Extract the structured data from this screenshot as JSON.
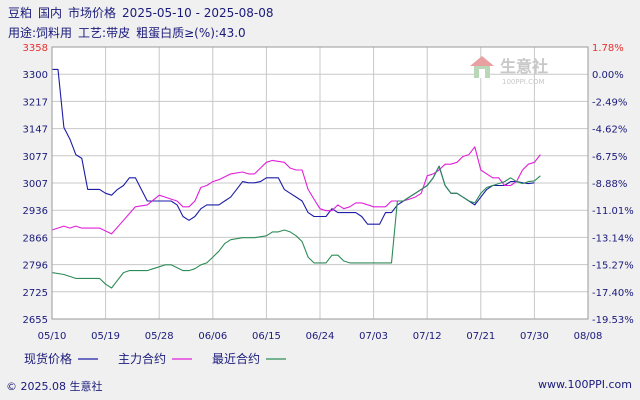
{
  "header": {
    "product": "豆粕",
    "region": "国内",
    "market": "市场价格",
    "date_range": "2025-05-10 - 2025-08-08",
    "usage_label": "用途:饲料用",
    "process_label": "工艺:带皮",
    "protein_label": "粗蛋白质≥(%):43.0"
  },
  "watermark": {
    "brand": "生意社",
    "url": "100PPI.COM"
  },
  "footer": {
    "copyright": "© 2025.08 生意社",
    "site": "www.100PPI.com"
  },
  "colors": {
    "spot": "#1c1ca8",
    "main": "#e020d8",
    "recent": "#2e8b57",
    "grid": "#c8c8c8",
    "plot_bg": "#ffffff",
    "highlight": "#e63030"
  },
  "chart_data": {
    "type": "line",
    "y_ticks_left": [
      "3358",
      "3300",
      "3217",
      "3147",
      "3077",
      "3007",
      "2936",
      "2866",
      "2796",
      "2725",
      "2655"
    ],
    "y_ticks_right": [
      "1.78%",
      "0.00%",
      "-2.49%",
      "-4.62%",
      "-6.75%",
      "-8.88%",
      "-11.01%",
      "-13.14%",
      "-15.27%",
      "-17.40%",
      "-19.53%"
    ],
    "ylim": [
      2655,
      3358
    ],
    "x_ticks": [
      "05/10",
      "05/19",
      "05/28",
      "06/06",
      "06/15",
      "06/24",
      "07/03",
      "07/12",
      "07/21",
      "07/30",
      "08/08"
    ],
    "grid": true,
    "legend_position": "bottom",
    "series": [
      {
        "name": "现货价格",
        "color": "#1c1ca8",
        "points": [
          [
            0,
            3300
          ],
          [
            1,
            3300
          ],
          [
            2,
            3150
          ],
          [
            3,
            3120
          ],
          [
            4,
            3080
          ],
          [
            5,
            3070
          ],
          [
            6,
            2990
          ],
          [
            7,
            2990
          ],
          [
            8,
            2990
          ],
          [
            9,
            2980
          ],
          [
            10,
            2975
          ],
          [
            11,
            2990
          ],
          [
            12,
            3000
          ],
          [
            13,
            3020
          ],
          [
            14,
            3020
          ],
          [
            15,
            2990
          ],
          [
            16,
            2960
          ],
          [
            17,
            2960
          ],
          [
            18,
            2960
          ],
          [
            19,
            2960
          ],
          [
            20,
            2960
          ],
          [
            21,
            2950
          ],
          [
            22,
            2920
          ],
          [
            23,
            2910
          ],
          [
            24,
            2920
          ],
          [
            25,
            2940
          ],
          [
            26,
            2950
          ],
          [
            27,
            2950
          ],
          [
            28,
            2950
          ],
          [
            29,
            2960
          ],
          [
            30,
            2970
          ],
          [
            31,
            2990
          ],
          [
            32,
            3010
          ],
          [
            33,
            3007
          ],
          [
            34,
            3007
          ],
          [
            35,
            3010
          ],
          [
            36,
            3020
          ],
          [
            37,
            3020
          ],
          [
            38,
            3020
          ],
          [
            39,
            2990
          ],
          [
            40,
            2980
          ],
          [
            41,
            2970
          ],
          [
            42,
            2960
          ],
          [
            43,
            2930
          ],
          [
            44,
            2920
          ],
          [
            45,
            2920
          ],
          [
            46,
            2920
          ],
          [
            47,
            2940
          ],
          [
            48,
            2930
          ],
          [
            49,
            2930
          ],
          [
            50,
            2930
          ],
          [
            51,
            2930
          ],
          [
            52,
            2920
          ],
          [
            53,
            2900
          ],
          [
            54,
            2900
          ],
          [
            55,
            2900
          ],
          [
            56,
            2930
          ],
          [
            57,
            2930
          ],
          [
            58,
            2950
          ],
          [
            59,
            2960
          ],
          [
            60,
            2970
          ],
          [
            61,
            2980
          ],
          [
            62,
            2990
          ],
          [
            63,
            3000
          ],
          [
            64,
            3020
          ],
          [
            65,
            3050
          ],
          [
            66,
            3000
          ],
          [
            67,
            2980
          ],
          [
            68,
            2980
          ],
          [
            69,
            2970
          ],
          [
            70,
            2960
          ],
          [
            71,
            2950
          ],
          [
            72,
            2970
          ],
          [
            73,
            2990
          ],
          [
            74,
            3000
          ],
          [
            75,
            3000
          ],
          [
            76,
            3000
          ],
          [
            77,
            3010
          ],
          [
            78,
            3010
          ],
          [
            79,
            3007
          ],
          [
            80,
            3005
          ],
          [
            81,
            3007
          ]
        ]
      },
      {
        "name": "主力合约",
        "color": "#e020d8",
        "points": [
          [
            0,
            2885
          ],
          [
            2,
            2895
          ],
          [
            3,
            2890
          ],
          [
            4,
            2895
          ],
          [
            5,
            2890
          ],
          [
            6,
            2890
          ],
          [
            8,
            2890
          ],
          [
            10,
            2875
          ],
          [
            12,
            2910
          ],
          [
            14,
            2945
          ],
          [
            16,
            2950
          ],
          [
            18,
            2975
          ],
          [
            19,
            2970
          ],
          [
            20,
            2965
          ],
          [
            21,
            2960
          ],
          [
            22,
            2945
          ],
          [
            23,
            2945
          ],
          [
            24,
            2960
          ],
          [
            25,
            2995
          ],
          [
            26,
            3000
          ],
          [
            27,
            3010
          ],
          [
            28,
            3015
          ],
          [
            30,
            3030
          ],
          [
            32,
            3035
          ],
          [
            33,
            3030
          ],
          [
            34,
            3030
          ],
          [
            35,
            3045
          ],
          [
            36,
            3060
          ],
          [
            37,
            3065
          ],
          [
            39,
            3060
          ],
          [
            40,
            3045
          ],
          [
            41,
            3040
          ],
          [
            42,
            3040
          ],
          [
            43,
            2990
          ],
          [
            44,
            2965
          ],
          [
            45,
            2940
          ],
          [
            46,
            2935
          ],
          [
            47,
            2935
          ],
          [
            48,
            2950
          ],
          [
            49,
            2940
          ],
          [
            50,
            2945
          ],
          [
            51,
            2955
          ],
          [
            52,
            2955
          ],
          [
            54,
            2945
          ],
          [
            55,
            2945
          ],
          [
            56,
            2945
          ],
          [
            57,
            2960
          ],
          [
            58,
            2960
          ],
          [
            59,
            2960
          ],
          [
            60,
            2965
          ],
          [
            61,
            2970
          ],
          [
            62,
            2980
          ],
          [
            63,
            3025
          ],
          [
            64,
            3030
          ],
          [
            65,
            3040
          ],
          [
            66,
            3055
          ],
          [
            67,
            3055
          ],
          [
            68,
            3060
          ],
          [
            69,
            3075
          ],
          [
            70,
            3080
          ],
          [
            71,
            3100
          ],
          [
            72,
            3040
          ],
          [
            73,
            3030
          ],
          [
            74,
            3020
          ],
          [
            75,
            3020
          ],
          [
            76,
            3000
          ],
          [
            77,
            3000
          ],
          [
            78,
            3010
          ],
          [
            79,
            3040
          ],
          [
            80,
            3055
          ],
          [
            81,
            3060
          ],
          [
            82,
            3080
          ]
        ]
      },
      {
        "name": "最近合约",
        "color": "#2e8b57",
        "points": [
          [
            0,
            2775
          ],
          [
            2,
            2770
          ],
          [
            4,
            2760
          ],
          [
            6,
            2760
          ],
          [
            8,
            2760
          ],
          [
            9,
            2745
          ],
          [
            10,
            2735
          ],
          [
            11,
            2755
          ],
          [
            12,
            2775
          ],
          [
            13,
            2780
          ],
          [
            14,
            2780
          ],
          [
            16,
            2780
          ],
          [
            17,
            2785
          ],
          [
            18,
            2790
          ],
          [
            19,
            2795
          ],
          [
            20,
            2795
          ],
          [
            22,
            2780
          ],
          [
            23,
            2780
          ],
          [
            24,
            2785
          ],
          [
            25,
            2795
          ],
          [
            26,
            2800
          ],
          [
            27,
            2815
          ],
          [
            28,
            2830
          ],
          [
            29,
            2850
          ],
          [
            30,
            2860
          ],
          [
            32,
            2865
          ],
          [
            34,
            2865
          ],
          [
            36,
            2870
          ],
          [
            37,
            2880
          ],
          [
            38,
            2880
          ],
          [
            39,
            2885
          ],
          [
            40,
            2880
          ],
          [
            41,
            2870
          ],
          [
            42,
            2855
          ],
          [
            43,
            2815
          ],
          [
            44,
            2800
          ],
          [
            45,
            2800
          ],
          [
            46,
            2800
          ],
          [
            47,
            2820
          ],
          [
            48,
            2820
          ],
          [
            49,
            2805
          ],
          [
            50,
            2800
          ],
          [
            52,
            2800
          ],
          [
            54,
            2800
          ],
          [
            55,
            2800
          ],
          [
            56,
            2800
          ],
          [
            57,
            2800
          ],
          [
            58,
            2960
          ],
          [
            59,
            2960
          ],
          [
            60,
            2970
          ],
          [
            61,
            2980
          ],
          [
            62,
            2990
          ],
          [
            63,
            3000
          ],
          [
            64,
            3020
          ],
          [
            65,
            3050
          ],
          [
            66,
            3000
          ],
          [
            67,
            2980
          ],
          [
            68,
            2980
          ],
          [
            69,
            2970
          ],
          [
            70,
            2960
          ],
          [
            71,
            2955
          ],
          [
            72,
            2980
          ],
          [
            73,
            2995
          ],
          [
            74,
            3000
          ],
          [
            75,
            3005
          ],
          [
            76,
            3010
          ],
          [
            77,
            3020
          ],
          [
            78,
            3010
          ],
          [
            79,
            3005
          ],
          [
            80,
            3010
          ],
          [
            81,
            3012
          ],
          [
            82,
            3025
          ]
        ]
      }
    ]
  }
}
